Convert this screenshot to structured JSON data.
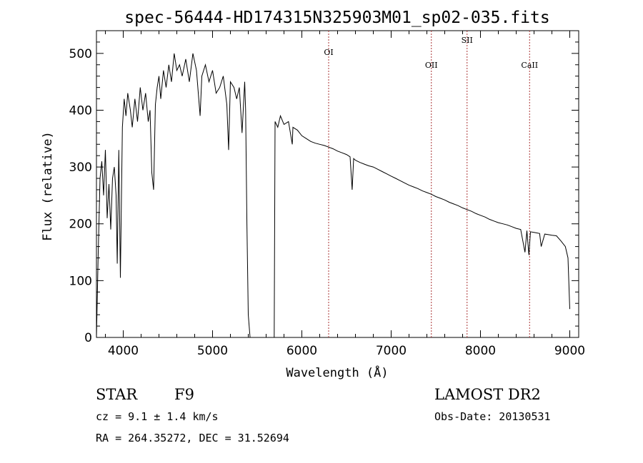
{
  "chart_data": {
    "type": "line",
    "title": "spec-56444-HD174315N325903M01_sp02-035.fits",
    "xlabel": "Wavelength (Å)",
    "ylabel": "Flux (relative)",
    "xlim": [
      3700,
      9100
    ],
    "ylim": [
      0,
      540
    ],
    "xticks": [
      4000,
      5000,
      6000,
      7000,
      8000,
      9000
    ],
    "yticks": [
      0,
      100,
      200,
      300,
      400,
      500
    ],
    "grid": false,
    "series": [
      {
        "x": [
          3700,
          3720,
          3740,
          3760,
          3780,
          3800,
          3820,
          3840,
          3860,
          3880,
          3900,
          3920,
          3933,
          3950,
          3968,
          3990,
          4010,
          4030,
          4050,
          4080,
          4101,
          4130,
          4160,
          4190,
          4220,
          4250,
          4280,
          4300,
          4320,
          4340,
          4360,
          4380,
          4400,
          4420,
          4450,
          4480,
          4510,
          4540,
          4570,
          4600,
          4630,
          4660,
          4700,
          4740,
          4780,
          4820,
          4861,
          4880,
          4920,
          4960,
          5000,
          5040,
          5080,
          5120,
          5160,
          5180,
          5200,
          5240,
          5270,
          5300,
          5330,
          5360,
          5370,
          5385,
          5400,
          5420,
          5500,
          5600,
          5660,
          5690,
          5700,
          5730,
          5760,
          5800,
          5850,
          5893,
          5900,
          5950,
          6000,
          6050,
          6100,
          6150,
          6200,
          6250,
          6300,
          6350,
          6400,
          6450,
          6500,
          6540,
          6563,
          6580,
          6600,
          6650,
          6700,
          6750,
          6800,
          6850,
          6900,
          6950,
          7000,
          7050,
          7100,
          7150,
          7200,
          7250,
          7300,
          7350,
          7400,
          7450,
          7500,
          7550,
          7600,
          7650,
          7700,
          7750,
          7800,
          7850,
          7900,
          7950,
          8000,
          8050,
          8100,
          8150,
          8200,
          8250,
          8300,
          8350,
          8400,
          8450,
          8498,
          8520,
          8542,
          8560,
          8600,
          8662,
          8680,
          8720,
          8760,
          8800,
          8850,
          8900,
          8950,
          8980,
          9000
        ],
        "y": [
          0,
          150,
          280,
          310,
          250,
          330,
          210,
          270,
          190,
          280,
          300,
          250,
          130,
          330,
          105,
          370,
          420,
          390,
          430,
          400,
          370,
          420,
          380,
          440,
          400,
          430,
          380,
          400,
          290,
          260,
          410,
          440,
          460,
          420,
          470,
          440,
          480,
          450,
          500,
          470,
          480,
          460,
          490,
          450,
          500,
          470,
          390,
          460,
          480,
          450,
          470,
          430,
          440,
          460,
          410,
          330,
          450,
          440,
          420,
          440,
          360,
          450,
          400,
          200,
          40,
          0,
          0,
          0,
          0,
          0,
          380,
          370,
          390,
          375,
          380,
          340,
          370,
          365,
          355,
          350,
          345,
          342,
          340,
          338,
          335,
          332,
          328,
          325,
          322,
          318,
          260,
          315,
          312,
          308,
          305,
          302,
          300,
          296,
          292,
          288,
          284,
          280,
          276,
          272,
          268,
          265,
          262,
          258,
          255,
          252,
          248,
          245,
          242,
          238,
          235,
          232,
          228,
          225,
          222,
          218,
          215,
          212,
          208,
          205,
          202,
          200,
          198,
          195,
          192,
          190,
          150,
          188,
          145,
          186,
          185,
          183,
          160,
          182,
          181,
          180,
          179,
          170,
          160,
          140,
          50
        ]
      }
    ],
    "annotations": [
      {
        "label": "OI",
        "x": 6300
      },
      {
        "label": "OII",
        "x": 7450
      },
      {
        "label": "SII",
        "x": 7850
      },
      {
        "label": "CaII",
        "x": 8550
      }
    ]
  },
  "footer": {
    "object_type": "STAR",
    "spectral_class": "F9",
    "survey": "LAMOST DR2",
    "cz": "cz = 9.1 ± 1.4 km/s",
    "obs_date": "Obs-Date: 20130531",
    "coords": "RA = 264.35272, DEC =  31.52694"
  }
}
